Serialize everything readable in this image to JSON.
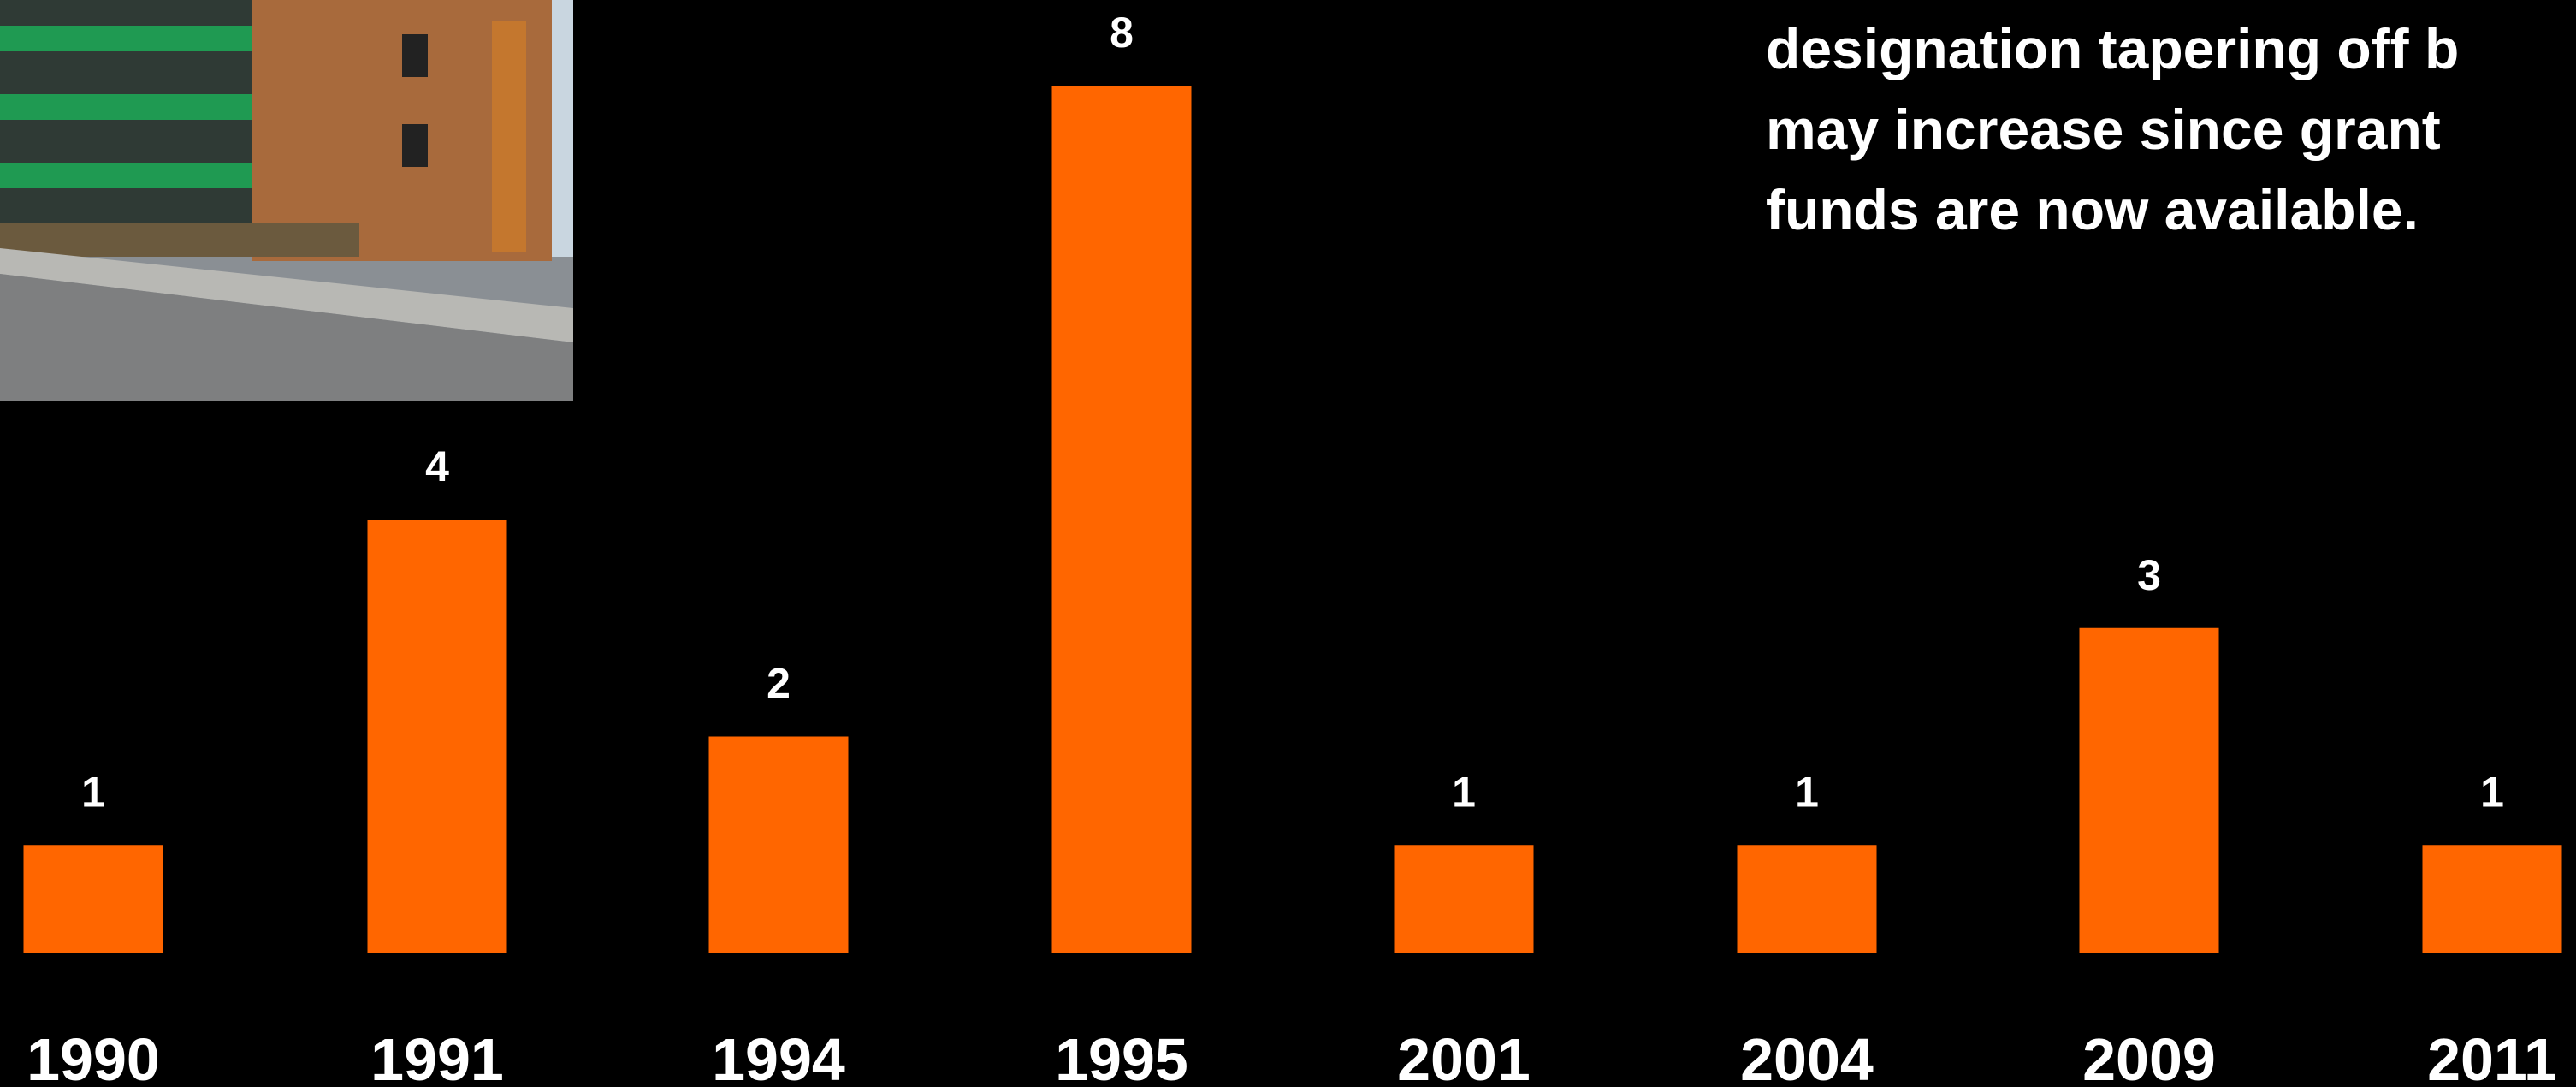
{
  "chart_data": {
    "type": "bar",
    "categories": [
      "1990",
      "1991",
      "1994",
      "1995",
      "2001",
      "2004",
      "2009",
      "2011"
    ],
    "values": [
      1,
      4,
      2,
      8,
      1,
      1,
      3,
      1
    ],
    "color": "#ff6600",
    "annotation": [
      "designation tapering off b",
      "may increase since grant",
      "funds are now available."
    ]
  }
}
